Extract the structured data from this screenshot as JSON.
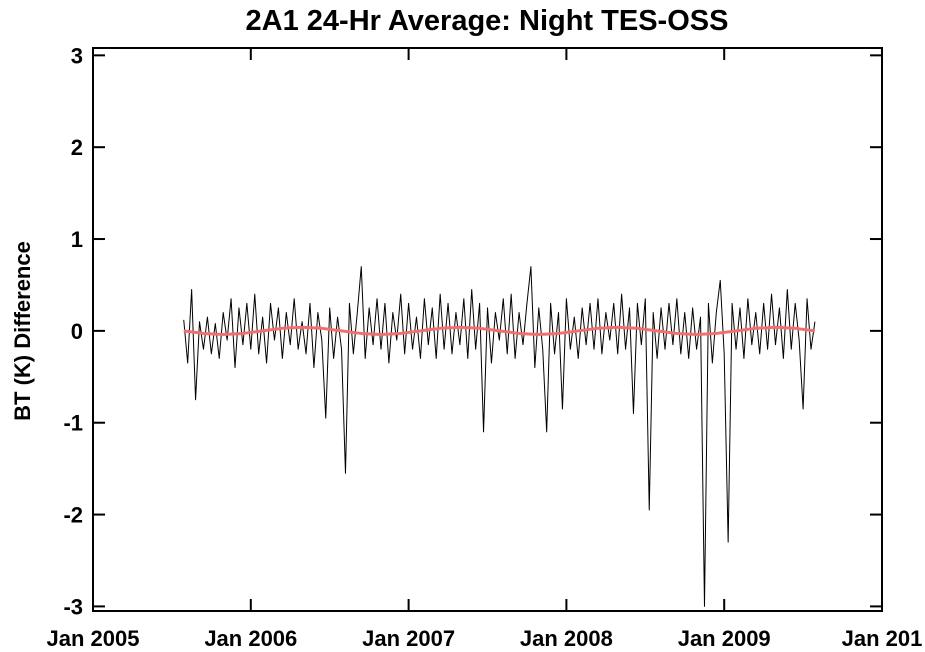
{
  "chart_data": {
    "type": "line",
    "title": "2A1 24-Hr Average: Night TES-OSS",
    "y_label": "BT (K) Difference",
    "xlim": [
      2005,
      2010
    ],
    "xticks": [
      {
        "value": 2005,
        "label": "Jan 2005"
      },
      {
        "value": 2006,
        "label": "Jan 2006"
      },
      {
        "value": 2007,
        "label": "Jan 2007"
      },
      {
        "value": 2008,
        "label": "Jan 2008"
      },
      {
        "value": 2009,
        "label": "Jan 2009"
      },
      {
        "value": 2010,
        "label": "Jan 201"
      }
    ],
    "ylim": [
      -3.05,
      3.08
    ],
    "yticks": [
      -3,
      -2,
      -1,
      0,
      1,
      2,
      3
    ],
    "series": [
      {
        "color": "#000000",
        "width": 1,
        "x": [
          2005.575,
          2005.6,
          2005.625,
          2005.65,
          2005.675,
          2005.7,
          2005.725,
          2005.75,
          2005.775,
          2005.8,
          2005.825,
          2005.85,
          2005.875,
          2005.9,
          2005.925,
          2005.95,
          2005.975,
          2006,
          2006.025,
          2006.05,
          2006.075,
          2006.1,
          2006.125,
          2006.15,
          2006.175,
          2006.2,
          2006.225,
          2006.25,
          2006.275,
          2006.3,
          2006.325,
          2006.35,
          2006.375,
          2006.4,
          2006.425,
          2006.45,
          2006.475,
          2006.5,
          2006.525,
          2006.55,
          2006.575,
          2006.6,
          2006.625,
          2006.65,
          2006.675,
          2006.7,
          2006.725,
          2006.75,
          2006.775,
          2006.8,
          2006.825,
          2006.85,
          2006.875,
          2006.9,
          2006.925,
          2006.95,
          2006.975,
          2007,
          2007.025,
          2007.05,
          2007.075,
          2007.1,
          2007.125,
          2007.15,
          2007.175,
          2007.2,
          2007.225,
          2007.25,
          2007.275,
          2007.3,
          2007.325,
          2007.35,
          2007.375,
          2007.4,
          2007.425,
          2007.45,
          2007.475,
          2007.5,
          2007.525,
          2007.55,
          2007.575,
          2007.6,
          2007.625,
          2007.65,
          2007.675,
          2007.7,
          2007.725,
          2007.75,
          2007.775,
          2007.8,
          2007.825,
          2007.85,
          2007.875,
          2007.9,
          2007.925,
          2007.95,
          2007.975,
          2008,
          2008.025,
          2008.05,
          2008.075,
          2008.1,
          2008.125,
          2008.15,
          2008.175,
          2008.2,
          2008.225,
          2008.25,
          2008.275,
          2008.3,
          2008.325,
          2008.35,
          2008.375,
          2008.4,
          2008.425,
          2008.45,
          2008.475,
          2008.5,
          2008.525,
          2008.55,
          2008.575,
          2008.6,
          2008.625,
          2008.65,
          2008.675,
          2008.7,
          2008.725,
          2008.75,
          2008.775,
          2008.8,
          2008.825,
          2008.85,
          2008.875,
          2008.9,
          2008.925,
          2008.95,
          2008.975,
          2009,
          2009.025,
          2009.05,
          2009.075,
          2009.1,
          2009.125,
          2009.15,
          2009.175,
          2009.2,
          2009.225,
          2009.25,
          2009.275,
          2009.3,
          2009.325,
          2009.35,
          2009.375,
          2009.4,
          2009.425,
          2009.45,
          2009.475,
          2009.5,
          2009.525,
          2009.55,
          2009.575
        ],
        "values": [
          0.12,
          -0.35,
          0.45,
          -0.75,
          0.1,
          -0.2,
          0.15,
          -0.25,
          0.08,
          -0.3,
          0.2,
          -0.1,
          0.35,
          -0.4,
          0.25,
          -0.15,
          0.3,
          -0.2,
          0.4,
          -0.25,
          0.15,
          -0.35,
          0.3,
          -0.1,
          0.25,
          -0.3,
          0.2,
          -0.15,
          0.35,
          -0.2,
          0.1,
          -0.25,
          0.3,
          -0.4,
          0.2,
          -0.1,
          -0.95,
          0.25,
          -0.3,
          0.15,
          -0.2,
          -1.55,
          0.3,
          -0.25,
          0.2,
          0.7,
          -0.3,
          0.25,
          -0.15,
          0.35,
          -0.2,
          0.3,
          -0.35,
          0.2,
          -0.1,
          0.4,
          -0.25,
          0.3,
          -0.2,
          0.15,
          -0.3,
          0.35,
          -0.15,
          0.25,
          -0.3,
          0.4,
          -0.2,
          0.3,
          -0.25,
          0.2,
          -0.15,
          0.35,
          -0.3,
          0.45,
          -0.2,
          0.3,
          -1.1,
          0.25,
          -0.35,
          0.2,
          -0.1,
          0.35,
          -0.25,
          0.4,
          -0.3,
          0.2,
          -0.15,
          0.3,
          0.7,
          -0.4,
          0.25,
          -0.2,
          -1.1,
          0.3,
          -0.25,
          0.2,
          -0.85,
          0.35,
          -0.2,
          0.15,
          -0.3,
          0.25,
          -0.15,
          0.3,
          -0.2,
          0.35,
          -0.25,
          0.2,
          -0.1,
          0.3,
          -0.25,
          0.4,
          -0.2,
          0.25,
          -0.9,
          0.3,
          -0.15,
          0.35,
          -1.95,
          0.2,
          -0.3,
          0.25,
          -0.2,
          0.3,
          -0.15,
          0.35,
          -0.25,
          0.2,
          -0.3,
          0.25,
          -0.2,
          0.15,
          -3,
          0.3,
          -0.35,
          0.2,
          0.55,
          -0.25,
          -2.3,
          0.3,
          -0.2,
          0.25,
          -0.3,
          0.35,
          -0.15,
          0.2,
          -0.25,
          0.3,
          -0.2,
          0.4,
          -0.15,
          0.25,
          -0.3,
          0.45,
          -0.2,
          0.3,
          -0.1,
          -0.85,
          0.35,
          -0.2,
          0.1
        ]
      },
      {
        "color": "#f07070",
        "width": 3,
        "x": [
          2005.575,
          2005.7,
          2005.825,
          2005.95,
          2006.075,
          2006.2,
          2006.325,
          2006.45,
          2006.575,
          2006.7,
          2006.825,
          2006.95,
          2007.075,
          2007.2,
          2007.325,
          2007.45,
          2007.575,
          2007.7,
          2007.825,
          2007.95,
          2008.075,
          2008.2,
          2008.325,
          2008.45,
          2008.575,
          2008.7,
          2008.825,
          2008.95,
          2009.075,
          2009.2,
          2009.325,
          2009.45,
          2009.575
        ],
        "values": [
          0,
          -0.028,
          -0.04,
          -0.028,
          0,
          0.028,
          0.04,
          0.028,
          0,
          -0.028,
          -0.04,
          -0.028,
          0,
          0.028,
          0.04,
          0.028,
          0,
          -0.028,
          -0.04,
          -0.028,
          0,
          0.028,
          0.04,
          0.028,
          0,
          -0.028,
          -0.04,
          -0.028,
          0,
          0.028,
          0.04,
          0.028,
          0
        ]
      }
    ]
  }
}
